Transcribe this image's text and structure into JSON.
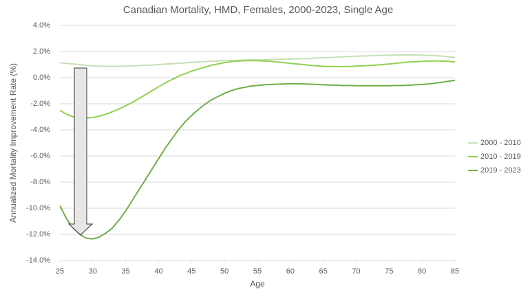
{
  "chart_data": {
    "type": "line",
    "title": "Canadian Mortality, HMD, Females, 2000-2023, Single Age",
    "x_label": "Age",
    "y_label": "Annualized Mortality Improvement Rate (%)",
    "x": [
      25,
      26,
      27,
      28,
      29,
      30,
      31,
      32,
      33,
      34,
      35,
      36,
      37,
      38,
      39,
      40,
      41,
      42,
      43,
      44,
      45,
      46,
      47,
      48,
      49,
      50,
      51,
      52,
      53,
      54,
      55,
      56,
      57,
      58,
      59,
      60,
      61,
      62,
      63,
      64,
      65,
      66,
      67,
      68,
      69,
      70,
      71,
      72,
      73,
      74,
      75,
      76,
      77,
      78,
      79,
      80,
      81,
      82,
      83,
      84,
      85
    ],
    "series": [
      {
        "name": "2000 - 2010",
        "color": "#c5e0b4",
        "values": [
          1.15,
          1.1,
          1.05,
          1.0,
          0.95,
          0.9,
          0.88,
          0.87,
          0.87,
          0.87,
          0.88,
          0.9,
          0.92,
          0.95,
          0.97,
          1.0,
          1.03,
          1.07,
          1.1,
          1.13,
          1.17,
          1.2,
          1.23,
          1.26,
          1.28,
          1.3,
          1.32,
          1.33,
          1.35,
          1.36,
          1.37,
          1.38,
          1.39,
          1.4,
          1.41,
          1.42,
          1.44,
          1.45,
          1.47,
          1.5,
          1.52,
          1.55,
          1.57,
          1.6,
          1.62,
          1.64,
          1.66,
          1.68,
          1.7,
          1.71,
          1.72,
          1.73,
          1.73,
          1.74,
          1.73,
          1.72,
          1.7,
          1.68,
          1.65,
          1.6,
          1.55
        ]
      },
      {
        "name": "2010 - 2019",
        "color": "#92d050",
        "values": [
          -2.5,
          -2.8,
          -3.0,
          -3.1,
          -3.1,
          -3.05,
          -2.95,
          -2.8,
          -2.6,
          -2.4,
          -2.15,
          -1.9,
          -1.6,
          -1.3,
          -1.0,
          -0.7,
          -0.4,
          -0.15,
          0.1,
          0.3,
          0.5,
          0.65,
          0.8,
          0.95,
          1.05,
          1.15,
          1.22,
          1.27,
          1.3,
          1.31,
          1.3,
          1.28,
          1.25,
          1.2,
          1.15,
          1.1,
          1.05,
          1.0,
          0.95,
          0.9,
          0.87,
          0.85,
          0.85,
          0.85,
          0.86,
          0.88,
          0.9,
          0.93,
          0.96,
          1.0,
          1.05,
          1.1,
          1.15,
          1.2,
          1.22,
          1.25,
          1.27,
          1.28,
          1.27,
          1.25,
          1.2
        ]
      },
      {
        "name": "2019 - 2023",
        "color": "#70ad47",
        "values": [
          -9.8,
          -10.8,
          -11.5,
          -12.0,
          -12.3,
          -12.35,
          -12.2,
          -11.9,
          -11.5,
          -10.9,
          -10.2,
          -9.4,
          -8.6,
          -7.8,
          -7.0,
          -6.2,
          -5.4,
          -4.7,
          -4.0,
          -3.4,
          -2.9,
          -2.45,
          -2.05,
          -1.7,
          -1.45,
          -1.2,
          -1.0,
          -0.85,
          -0.75,
          -0.65,
          -0.6,
          -0.55,
          -0.52,
          -0.5,
          -0.48,
          -0.47,
          -0.47,
          -0.48,
          -0.5,
          -0.52,
          -0.55,
          -0.57,
          -0.58,
          -0.6,
          -0.6,
          -0.62,
          -0.62,
          -0.62,
          -0.62,
          -0.62,
          -0.62,
          -0.6,
          -0.6,
          -0.58,
          -0.55,
          -0.52,
          -0.48,
          -0.42,
          -0.35,
          -0.28,
          -0.2
        ]
      }
    ],
    "xlim": [
      25,
      85
    ],
    "xticks": [
      25,
      30,
      35,
      40,
      45,
      50,
      55,
      60,
      65,
      70,
      75,
      80,
      85
    ],
    "ylim": [
      -14,
      4
    ],
    "yticks": [
      {
        "value": 4,
        "label": "4.0%"
      },
      {
        "value": 2,
        "label": "2.0%"
      },
      {
        "value": 0,
        "label": "0.0%"
      },
      {
        "value": -2,
        "label": "-2.0%"
      },
      {
        "value": -4,
        "label": "-4.0%"
      },
      {
        "value": -6,
        "label": "-6.0%"
      },
      {
        "value": -8,
        "label": "-8.0%"
      },
      {
        "value": -10,
        "label": "-10.0%"
      },
      {
        "value": -12,
        "label": "-12.0%"
      },
      {
        "value": -14,
        "label": "-14.0%"
      }
    ],
    "grid": true,
    "legend": "right"
  }
}
